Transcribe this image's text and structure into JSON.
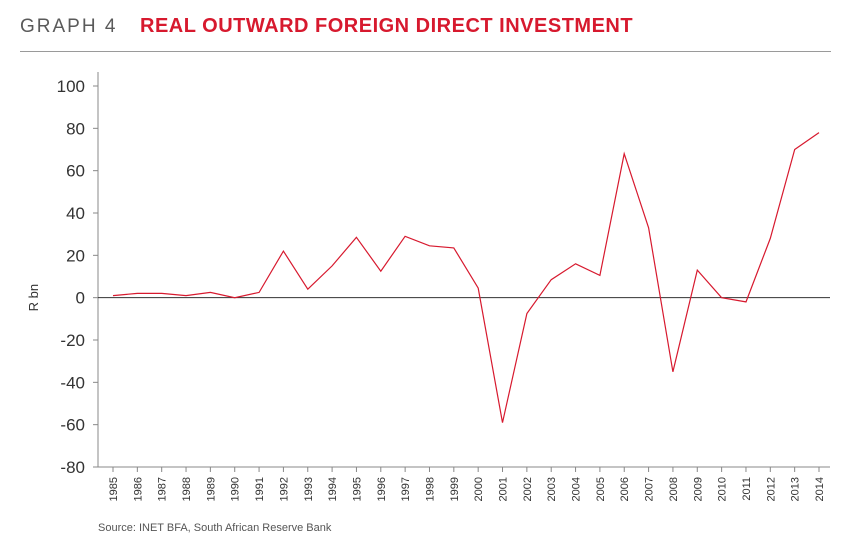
{
  "header": {
    "graph_label": "GRAPH 4",
    "title": "REAL OUTWARD FOREIGN DIRECT INVESTMENT"
  },
  "colors": {
    "accent": "#d7192e",
    "line": "#d7192e",
    "axis": "#333333",
    "text": "#333333"
  },
  "source": "Source: INET BFA, South African Reserve Bank",
  "chart_data": {
    "type": "line",
    "title": "REAL OUTWARD FOREIGN DIRECT INVESTMENT",
    "xlabel": "",
    "ylabel": "R bn",
    "ylim": [
      -80,
      100
    ],
    "yticks": [
      100,
      80,
      60,
      40,
      20,
      0,
      -20,
      -40,
      -60,
      -80
    ],
    "grid": false,
    "categories": [
      "1985",
      "1986",
      "1987",
      "1988",
      "1989",
      "1990",
      "1991",
      "1992",
      "1993",
      "1994",
      "1995",
      "1996",
      "1997",
      "1998",
      "1999",
      "2000",
      "2001",
      "2002",
      "2003",
      "2004",
      "2005",
      "2006",
      "2007",
      "2008",
      "2009",
      "2010",
      "2011",
      "2012",
      "2013",
      "2014"
    ],
    "series": [
      {
        "values": [
          1,
          2,
          2,
          1,
          2.5,
          0,
          2.5,
          22,
          4,
          15,
          28.5,
          12.5,
          29,
          24.5,
          23.5,
          4.5,
          -59,
          -7.5,
          8.5,
          16,
          10.5,
          68,
          33,
          -35,
          13,
          0,
          -2,
          28,
          70,
          78
        ]
      }
    ]
  }
}
